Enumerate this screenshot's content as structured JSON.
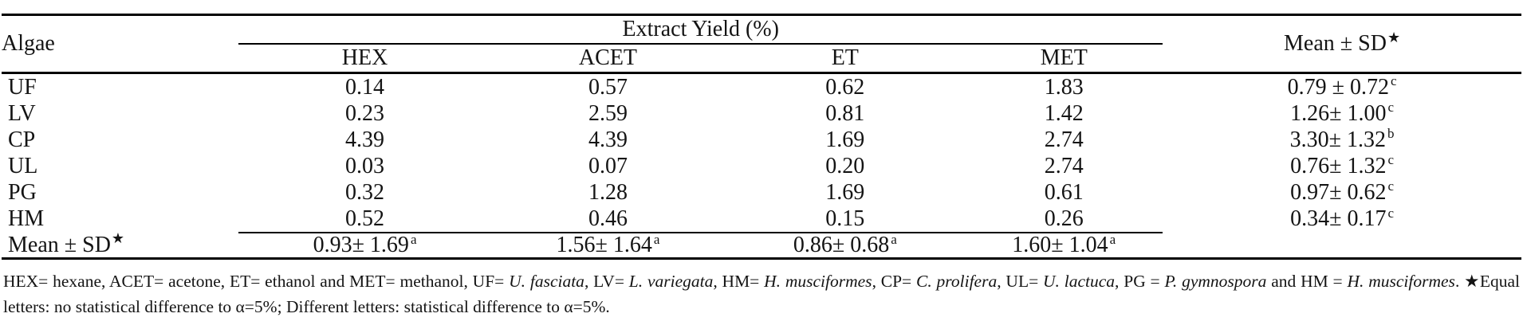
{
  "colors": {
    "background": "#ffffff",
    "text": "#141414",
    "rule": "#000000"
  },
  "table": {
    "col_headers": {
      "algae": "Algae",
      "group": "Extract Yield (%)",
      "solvents": [
        "HEX",
        "ACET",
        "ET",
        "MET"
      ],
      "mean_label": "Mean ± SD",
      "mean_star": "★"
    },
    "rows": [
      {
        "algae": "UF",
        "values": [
          "0.14",
          "0.57",
          "0.62",
          "1.83"
        ],
        "mean": {
          "value": "0.79 ± 0.72",
          "sup": "c"
        }
      },
      {
        "algae": "LV",
        "values": [
          "0.23",
          "2.59",
          "0.81",
          "1.42"
        ],
        "mean": {
          "value": "1.26± 1.00",
          "sup": "c"
        }
      },
      {
        "algae": "CP",
        "values": [
          "4.39",
          "4.39",
          "1.69",
          "2.74"
        ],
        "mean": {
          "value": "3.30± 1.32",
          "sup": "b"
        }
      },
      {
        "algae": "UL",
        "values": [
          "0.03",
          "0.07",
          "0.20",
          "2.74"
        ],
        "mean": {
          "value": "0.76± 1.32",
          "sup": "c"
        }
      },
      {
        "algae": "PG",
        "values": [
          "0.32",
          "1.28",
          "1.69",
          "0.61"
        ],
        "mean": {
          "value": "0.97± 0.62",
          "sup": "c"
        }
      },
      {
        "algae": "HM",
        "values": [
          "0.52",
          "0.46",
          "0.15",
          "0.26"
        ],
        "mean": {
          "value": "0.34± 0.17",
          "sup": "c"
        }
      }
    ],
    "footer": {
      "label": "Mean ± SD",
      "star": "★",
      "values": [
        {
          "value": "0.93± 1.69",
          "sup": "a"
        },
        {
          "value": "1.56± 1.64",
          "sup": "a"
        },
        {
          "value": "0.86± 0.68",
          "sup": "a"
        },
        {
          "value": "1.60± 1.04",
          "sup": "a"
        }
      ]
    }
  },
  "footnote": {
    "segments": [
      {
        "t": "HEX= hexane, ACET= acetone, ET= ethanol and MET= methanol, UF= "
      },
      {
        "t": "U. fasciata",
        "i": true
      },
      {
        "t": ", LV= "
      },
      {
        "t": "L. variegata",
        "i": true
      },
      {
        "t": ", HM= "
      },
      {
        "t": "H. musciformes",
        "i": true
      },
      {
        "t": ", CP= "
      },
      {
        "t": "C. prolifera",
        "i": true
      },
      {
        "t": ", UL= "
      },
      {
        "t": "U. lactuca",
        "i": true
      },
      {
        "t": ", PG = "
      },
      {
        "t": "P. gymnospora",
        "i": true
      },
      {
        "t": " and HM = "
      },
      {
        "t": "H. musciformes",
        "i": true
      },
      {
        "t": ". ★Equal letters: no statistical difference to α=5%; Different letters: statistical difference to α=5%."
      }
    ]
  }
}
